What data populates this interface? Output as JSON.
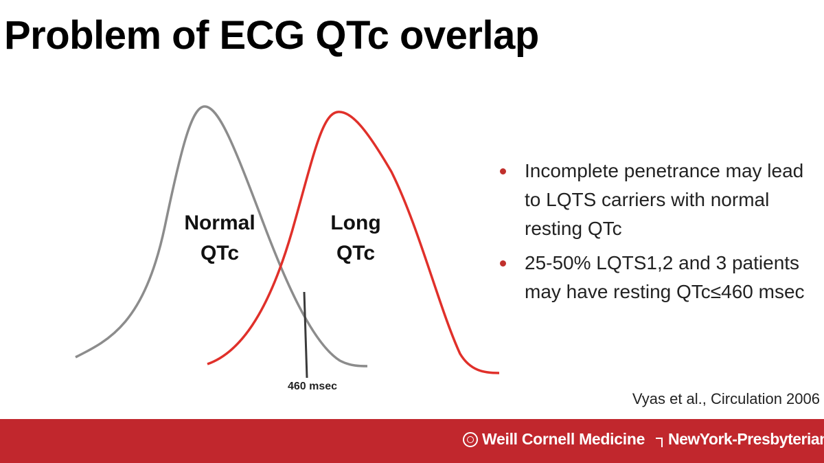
{
  "slide": {
    "title": "Problem of ECG QTc overlap",
    "curves": {
      "normal_label_line1": "Normal",
      "normal_label_line2": "QTc",
      "long_label_line1": "Long",
      "long_label_line2": "QTc",
      "normal_color": "#8c8c8c",
      "long_color": "#e0302a",
      "marker_label": "460 msec"
    },
    "bullets": [
      "Incomplete penetrance may lead to LQTS carriers with normal resting QTc",
      "25-50% LQTS1,2 and 3 patients may have resting QTc≤460 msec"
    ],
    "bullet_color": "#c0302c",
    "citation": "Vyas et al., Circulation 2006"
  },
  "footer": {
    "background": "#c1272d",
    "wcm_logo": "Weill Cornell Medicine",
    "nyp_logo": "NewYork-Presbyterian"
  }
}
